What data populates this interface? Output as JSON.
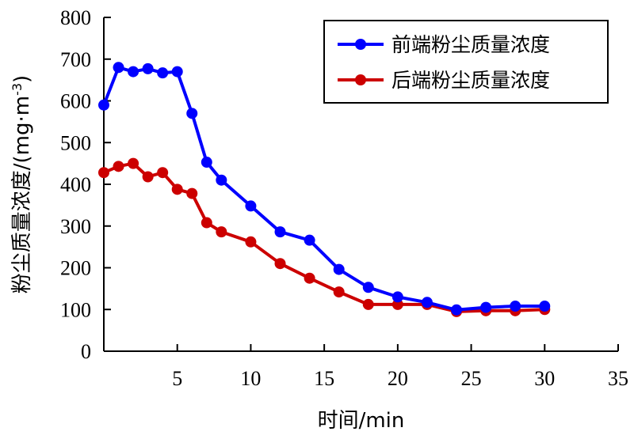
{
  "chart_data": {
    "type": "line",
    "xlabel": "时间/min",
    "ylabel": "粉尘质量浓度/(mg·m",
    "ylabel_sup": "-3",
    "ylabel_close": ")",
    "xlim": [
      0,
      35
    ],
    "ylim": [
      0,
      800
    ],
    "xticks": [
      "5",
      "10",
      "15",
      "20",
      "25",
      "30",
      "35"
    ],
    "xtick_values": [
      5,
      10,
      15,
      20,
      25,
      30,
      35
    ],
    "yticks": [
      "0",
      "100",
      "200",
      "300",
      "400",
      "500",
      "600",
      "700",
      "800"
    ],
    "ytick_values": [
      0,
      100,
      200,
      300,
      400,
      500,
      600,
      700,
      800
    ],
    "grid": false,
    "legend_position": "top-right",
    "x": [
      0,
      1,
      2,
      3,
      4,
      5,
      6,
      7,
      8,
      10,
      12,
      14,
      16,
      18,
      20,
      22,
      24,
      26,
      28,
      30
    ],
    "series": [
      {
        "name": "前端粉尘质量浓度",
        "color": "#0000ff",
        "values": [
          590,
          680,
          670,
          677,
          667,
          670,
          570,
          453,
          410,
          348,
          286,
          266,
          196,
          153,
          130,
          117,
          99,
          105,
          108,
          108
        ]
      },
      {
        "name": "后端粉尘质量浓度",
        "color": "#cc0000",
        "values": [
          428,
          443,
          450,
          418,
          428,
          388,
          378,
          308,
          286,
          262,
          210,
          175,
          142,
          112,
          112,
          112,
          95,
          97,
          97,
          100
        ]
      }
    ]
  }
}
